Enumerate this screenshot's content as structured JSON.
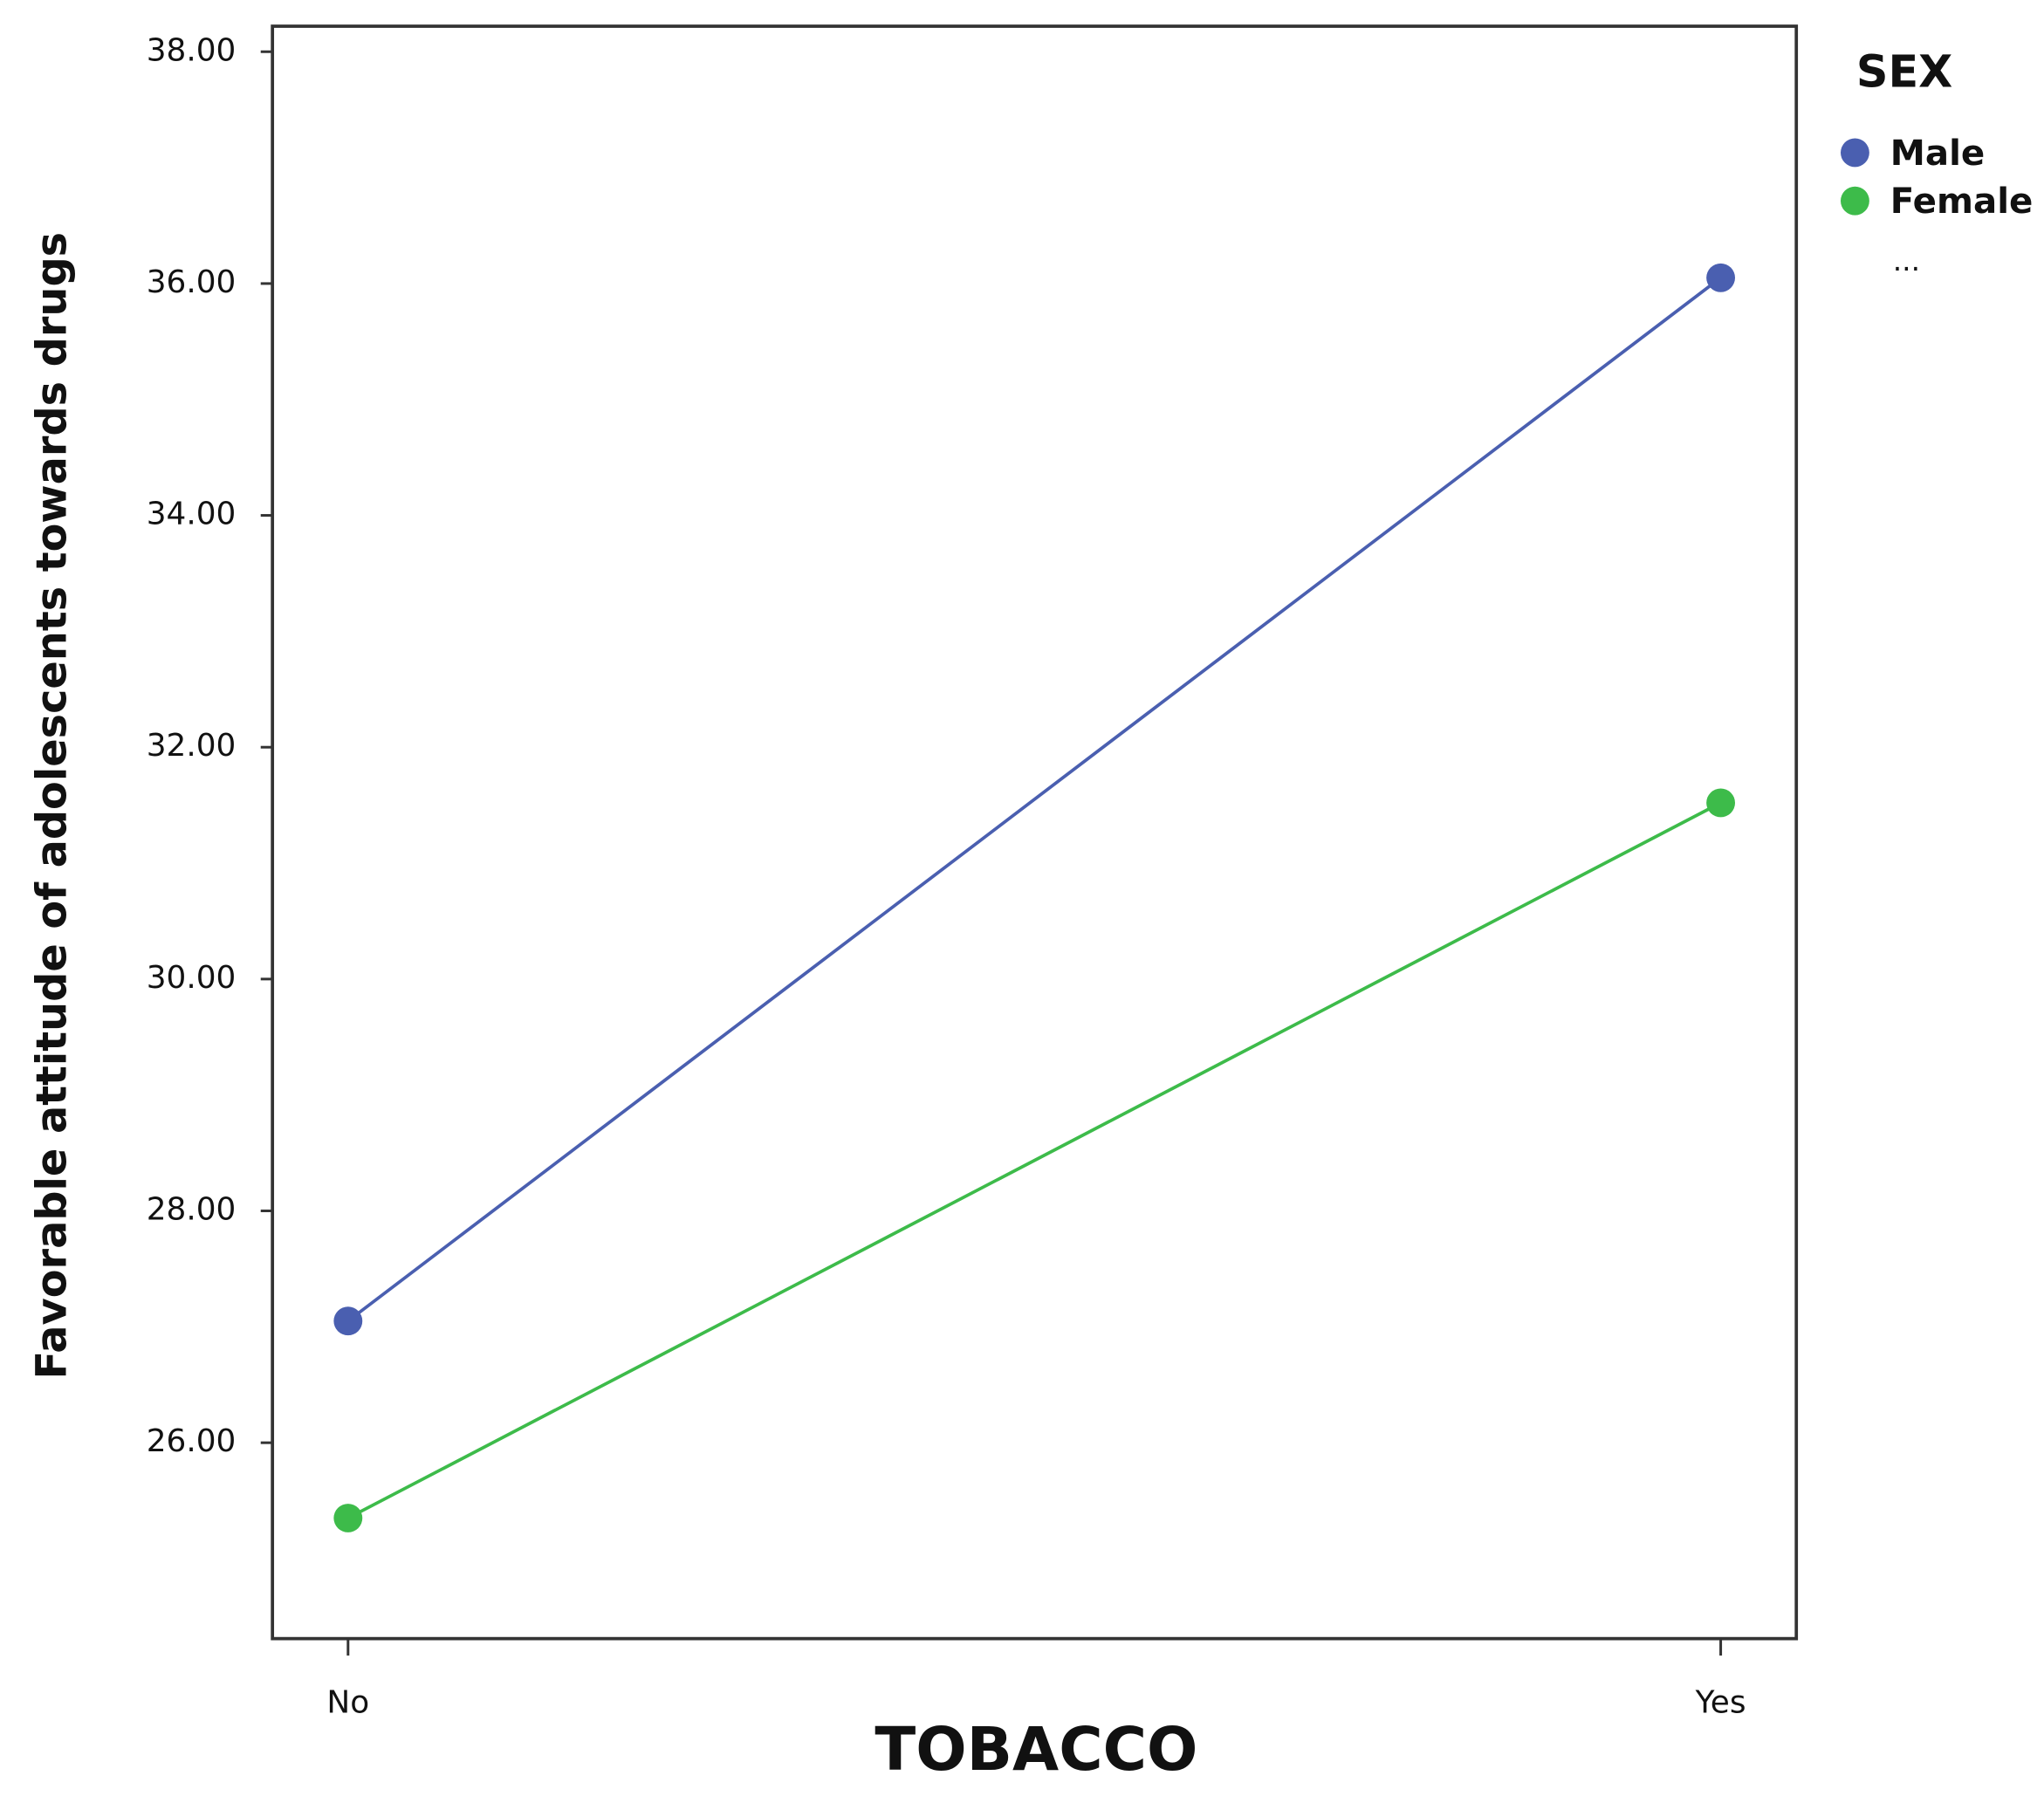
{
  "chart_data": {
    "type": "line",
    "x_label": "TOBACCO",
    "y_label": "Favorable attitude of adolescents towards drugs",
    "categories": [
      "No",
      "Yes"
    ],
    "series": [
      {
        "name": "Male",
        "color": "#4a5fb0",
        "values": [
          27.05,
          36.05
        ]
      },
      {
        "name": "Female",
        "color": "#3dbb4a",
        "values": [
          25.35,
          31.52
        ]
      }
    ],
    "legend_title": "SEX",
    "legend_overflow": "...",
    "legend_position": "right",
    "ylim": [
      24.31,
      38.22
    ],
    "yticks": [
      {
        "value": 26,
        "label": "26.00"
      },
      {
        "value": 28,
        "label": "28.00"
      },
      {
        "value": 30,
        "label": "30.00"
      },
      {
        "value": 32,
        "label": "32.00"
      },
      {
        "value": 34,
        "label": "34.00"
      },
      {
        "value": 36,
        "label": "36.00"
      },
      {
        "value": 38,
        "label": "38.00"
      }
    ],
    "grid": false
  }
}
